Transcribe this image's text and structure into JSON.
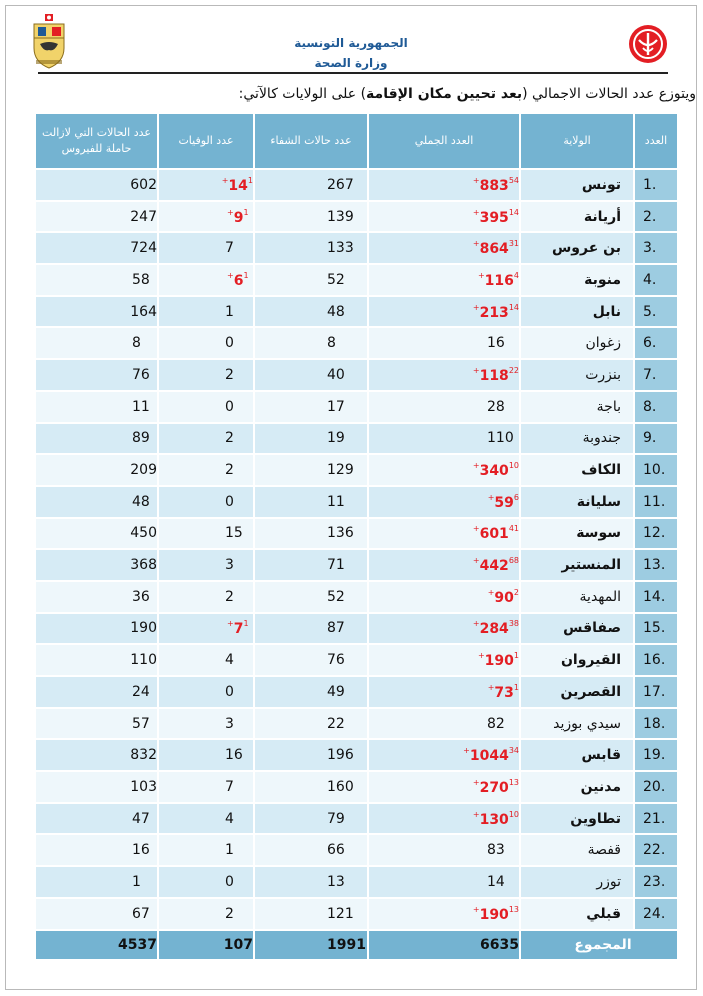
{
  "header": {
    "republic": "الجمهورية التونسية",
    "ministry": "وزارة الصحة"
  },
  "intro": {
    "prefix": "ويتوزع عدد الحالات الاجمالي (",
    "bold": "بعد تحيين مكان الإقامة",
    "suffix": ") على الولايات كالآتي:"
  },
  "table": {
    "headers": {
      "index": "العدد",
      "governorate": "الولاية",
      "total": "العدد الجملي",
      "recovered": "عدد حالات الشفاء",
      "deaths": "عدد الوفيات",
      "active_line1": "عدد الحالات التي لازالت",
      "active_line2": "حاملة للفيروس"
    },
    "rows": [
      {
        "idx": ".1",
        "gov": "تونس",
        "bold": true,
        "total": "883",
        "total_new": "54+",
        "rec": "267",
        "deaths": "14",
        "deaths_new": "1+",
        "active": "602"
      },
      {
        "idx": ".2",
        "gov": "أريانة",
        "bold": true,
        "total": "395",
        "total_new": "14+",
        "rec": "139",
        "deaths": "9",
        "deaths_new": "1+",
        "active": "247"
      },
      {
        "idx": ".3",
        "gov": "بن عروس",
        "bold": true,
        "total": "864",
        "total_new": "31+",
        "rec": "133",
        "deaths": "7",
        "deaths_new": "",
        "active": "724"
      },
      {
        "idx": ".4",
        "gov": "منوبة",
        "bold": true,
        "total": "116",
        "total_new": "4+",
        "rec": "52",
        "deaths": "6",
        "deaths_new": "1+",
        "active": "58"
      },
      {
        "idx": ".5",
        "gov": "نابل",
        "bold": true,
        "total": "213",
        "total_new": "14+",
        "rec": "48",
        "deaths": "1",
        "deaths_new": "",
        "active": "164"
      },
      {
        "idx": ".6",
        "gov": "زغوان",
        "bold": false,
        "total": "16",
        "total_new": "",
        "rec": "8",
        "deaths": "0",
        "deaths_new": "",
        "active": "8"
      },
      {
        "idx": ".7",
        "gov": "بنزرت",
        "bold": false,
        "total": "118",
        "total_new": "22+",
        "rec": "40",
        "deaths": "2",
        "deaths_new": "",
        "active": "76"
      },
      {
        "idx": ".8",
        "gov": "باجة",
        "bold": false,
        "total": "28",
        "total_new": "",
        "rec": "17",
        "deaths": "0",
        "deaths_new": "",
        "active": "11"
      },
      {
        "idx": ".9",
        "gov": "جندوبة",
        "bold": false,
        "total": "110",
        "total_new": "",
        "rec": "19",
        "deaths": "2",
        "deaths_new": "",
        "active": "89"
      },
      {
        "idx": ".10",
        "gov": "الكاف",
        "bold": true,
        "total": "340",
        "total_new": "10+",
        "rec": "129",
        "deaths": "2",
        "deaths_new": "",
        "active": "209"
      },
      {
        "idx": ".11",
        "gov": "سليانة",
        "bold": true,
        "total": "59",
        "total_new": "6+",
        "rec": "11",
        "deaths": "0",
        "deaths_new": "",
        "active": "48"
      },
      {
        "idx": ".12",
        "gov": "سوسة",
        "bold": true,
        "total": "601",
        "total_new": "41+",
        "rec": "136",
        "deaths": "15",
        "deaths_new": "",
        "active": "450"
      },
      {
        "idx": ".13",
        "gov": "المنستير",
        "bold": true,
        "total": "442",
        "total_new": "68+",
        "rec": "71",
        "deaths": "3",
        "deaths_new": "",
        "active": "368"
      },
      {
        "idx": ".14",
        "gov": "المهدية",
        "bold": false,
        "total": "90",
        "total_new": "2+",
        "rec": "52",
        "deaths": "2",
        "deaths_new": "",
        "active": "36"
      },
      {
        "idx": ".15",
        "gov": "صفاقس",
        "bold": true,
        "total": "284",
        "total_new": "38+",
        "rec": "87",
        "deaths": "7",
        "deaths_new": "1+",
        "active": "190"
      },
      {
        "idx": ".16",
        "gov": "القيروان",
        "bold": true,
        "total": "190",
        "total_new": "1+",
        "rec": "76",
        "deaths": "4",
        "deaths_new": "",
        "active": "110"
      },
      {
        "idx": ".17",
        "gov": "القصرين",
        "bold": true,
        "total": "73",
        "total_new": "1+",
        "rec": "49",
        "deaths": "0",
        "deaths_new": "",
        "active": "24"
      },
      {
        "idx": ".18",
        "gov": "سيدي بوزيد",
        "bold": false,
        "total": "82",
        "total_new": "",
        "rec": "22",
        "deaths": "3",
        "deaths_new": "",
        "active": "57"
      },
      {
        "idx": ".19",
        "gov": "قابس",
        "bold": true,
        "total": "1044",
        "total_new": "34+",
        "rec": "196",
        "deaths": "16",
        "deaths_new": "",
        "active": "832"
      },
      {
        "idx": ".20",
        "gov": "مدنين",
        "bold": true,
        "total": "270",
        "total_new": "13+",
        "rec": "160",
        "deaths": "7",
        "deaths_new": "",
        "active": "103"
      },
      {
        "idx": ".21",
        "gov": "تطاوين",
        "bold": true,
        "total": "130",
        "total_new": "10+",
        "rec": "79",
        "deaths": "4",
        "deaths_new": "",
        "active": "47"
      },
      {
        "idx": ".22",
        "gov": "قفصة",
        "bold": false,
        "total": "83",
        "total_new": "",
        "rec": "66",
        "deaths": "1",
        "deaths_new": "",
        "active": "16"
      },
      {
        "idx": ".23",
        "gov": "توزر",
        "bold": false,
        "total": "14",
        "total_new": "",
        "rec": "13",
        "deaths": "0",
        "deaths_new": "",
        "active": "1"
      },
      {
        "idx": ".24",
        "gov": "قبلي",
        "bold": true,
        "total": "190",
        "total_new": "13+",
        "rec": "121",
        "deaths": "2",
        "deaths_new": "",
        "active": "67"
      }
    ],
    "sum": {
      "label": "المجموع",
      "total": "6635",
      "rec": "1991",
      "deaths": "107",
      "active": "4537"
    }
  },
  "colors": {
    "header_blue": "#74b3d1",
    "row_light": "#eef7fb",
    "row_mid": "#d6ebf5",
    "highlight_red": "#e31e24",
    "ministry_blue": "#1f5a96"
  }
}
